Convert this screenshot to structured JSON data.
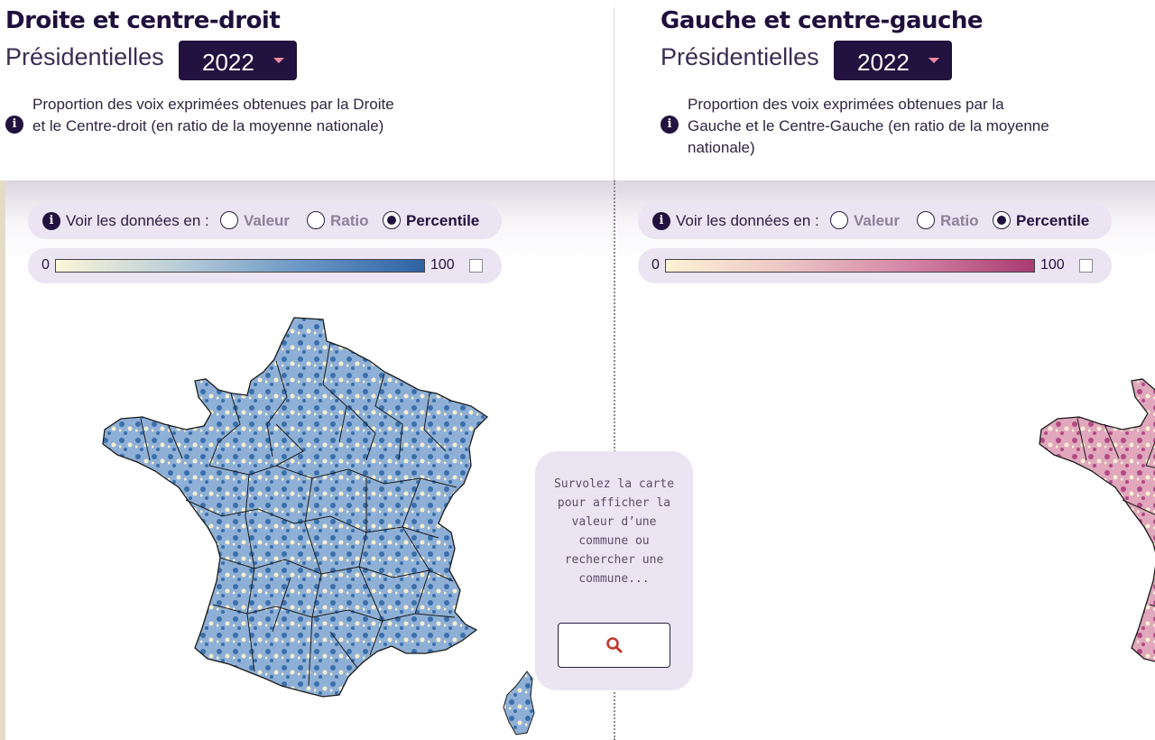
{
  "left": {
    "title": "Droite et centre-droit",
    "election_label": "Présidentielles",
    "year": "2022",
    "description": "Proportion des voix exprimées obtenues par la Droite et le Centre-droit (en ratio de la moyenne nationale)",
    "view_label": "Voir les données en :",
    "options": [
      "Valeur",
      "Ratio",
      "Percentile"
    ],
    "selected_option": "Percentile",
    "scale_min": "0",
    "scale_max": "100",
    "scale_colors": [
      "#fbf6d8",
      "#b9cdd8",
      "#6a97c4",
      "#2e62a3"
    ],
    "map_colors": {
      "low": "#f4efd2",
      "mid": "#8fb0d6",
      "high": "#3a6fab"
    }
  },
  "right": {
    "title": "Gauche et centre-gauche",
    "election_label": "Présidentielles",
    "year": "2022",
    "description": "Proportion des voix exprimées obtenues par la Gauche et le Centre-Gauche (en ratio de la moyenne nationale)",
    "view_label": "Voir les données en :",
    "options": [
      "Valeur",
      "Ratio",
      "Percentile"
    ],
    "selected_option": "Percentile",
    "scale_min": "0",
    "scale_max": "100",
    "scale_colors": [
      "#fcf3d4",
      "#ecc4c4",
      "#d284a4",
      "#a83a72"
    ],
    "map_colors": {
      "low": "#faf0d2",
      "mid": "#e0a7bd",
      "high": "#b24a80"
    }
  },
  "hover_card": {
    "text": "Survolez la carte pour afficher la valeur d’une commune ou rechercher une commune...",
    "search_icon": "search-icon"
  },
  "accent_colors": {
    "dark": "#22123f",
    "pill": "#ebe4f3",
    "caret": "#f08aa0",
    "search": "#c0392b"
  }
}
